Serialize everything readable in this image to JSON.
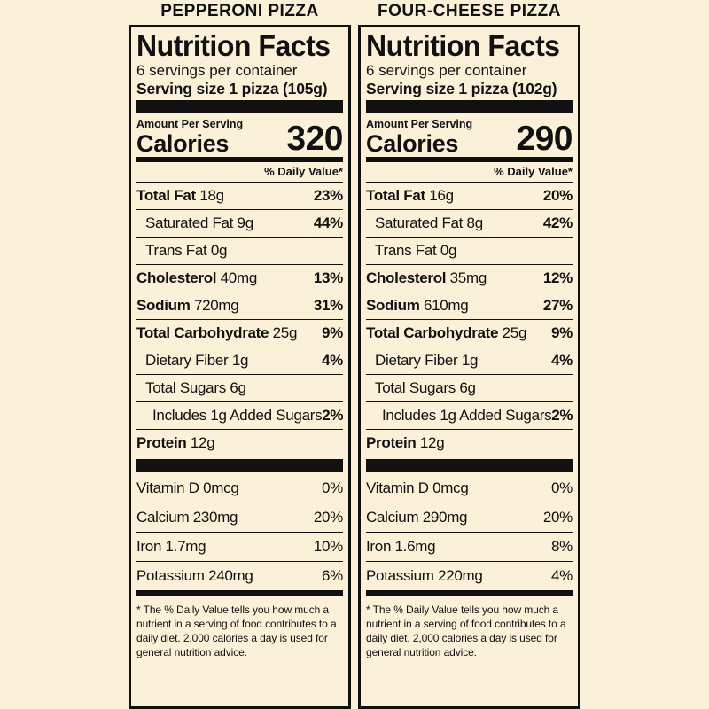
{
  "panels": [
    {
      "product": "PEPPERONI PIZZA",
      "title": "Nutrition Facts",
      "servings_per_container": "6 servings per container",
      "serving_size": "Serving size 1 pizza (105g)",
      "amount_per_serving": "Amount Per Serving",
      "calories_label": "Calories",
      "calories": "320",
      "dv_header": "% Daily Value*",
      "nutrients": [
        {
          "name": "Total Fat",
          "amount": "18g",
          "dv": "23%",
          "bold": true,
          "indent": 0
        },
        {
          "name": "Saturated Fat",
          "amount": "9g",
          "dv": "44%",
          "bold": false,
          "indent": 1
        },
        {
          "name": "Trans Fat",
          "amount": "0g",
          "dv": "",
          "bold": false,
          "indent": 1
        },
        {
          "name": "Cholesterol",
          "amount": "40mg",
          "dv": "13%",
          "bold": true,
          "indent": 0
        },
        {
          "name": "Sodium",
          "amount": "720mg",
          "dv": "31%",
          "bold": true,
          "indent": 0
        },
        {
          "name": "Total Carbohydrate",
          "amount": "25g",
          "dv": "9%",
          "bold": true,
          "indent": 0
        },
        {
          "name": "Dietary Fiber",
          "amount": "1g",
          "dv": "4%",
          "bold": false,
          "indent": 1
        },
        {
          "name": "Total Sugars",
          "amount": "6g",
          "dv": "",
          "bold": false,
          "indent": 1
        },
        {
          "name": "Includes 1g Added Sugars",
          "amount": "",
          "dv": "2%",
          "bold": false,
          "indent": 2
        },
        {
          "name": "Protein",
          "amount": "12g",
          "dv": "",
          "bold": true,
          "indent": 0
        }
      ],
      "vitamins": [
        {
          "name": "Vitamin D 0mcg",
          "dv": "0%"
        },
        {
          "name": "Calcium 230mg",
          "dv": "20%"
        },
        {
          "name": "Iron 1.7mg",
          "dv": "10%"
        },
        {
          "name": "Potassium 240mg",
          "dv": "6%"
        }
      ],
      "footnote": "* The % Daily Value tells you how much a nutrient in a serving of food contributes to a daily diet. 2,000 calories a day is used for general nutrition advice."
    },
    {
      "product": "FOUR-CHEESE PIZZA",
      "title": "Nutrition Facts",
      "servings_per_container": "6 servings per container",
      "serving_size": "Serving size 1 pizza (102g)",
      "amount_per_serving": "Amount Per Serving",
      "calories_label": "Calories",
      "calories": "290",
      "dv_header": "% Daily Value*",
      "nutrients": [
        {
          "name": "Total Fat",
          "amount": "16g",
          "dv": "20%",
          "bold": true,
          "indent": 0
        },
        {
          "name": "Saturated Fat",
          "amount": "8g",
          "dv": "42%",
          "bold": false,
          "indent": 1
        },
        {
          "name": "Trans Fat",
          "amount": "0g",
          "dv": "",
          "bold": false,
          "indent": 1
        },
        {
          "name": "Cholesterol",
          "amount": "35mg",
          "dv": "12%",
          "bold": true,
          "indent": 0
        },
        {
          "name": "Sodium",
          "amount": "610mg",
          "dv": "27%",
          "bold": true,
          "indent": 0
        },
        {
          "name": "Total Carbohydrate",
          "amount": "25g",
          "dv": "9%",
          "bold": true,
          "indent": 0
        },
        {
          "name": "Dietary Fiber",
          "amount": "1g",
          "dv": "4%",
          "bold": false,
          "indent": 1
        },
        {
          "name": "Total Sugars",
          "amount": "6g",
          "dv": "",
          "bold": false,
          "indent": 1
        },
        {
          "name": "Includes 1g Added Sugars",
          "amount": "",
          "dv": "2%",
          "bold": false,
          "indent": 2
        },
        {
          "name": "Protein",
          "amount": "12g",
          "dv": "",
          "bold": true,
          "indent": 0
        }
      ],
      "vitamins": [
        {
          "name": "Vitamin D 0mcg",
          "dv": "0%"
        },
        {
          "name": "Calcium 290mg",
          "dv": "20%"
        },
        {
          "name": "Iron 1.6mg",
          "dv": "8%"
        },
        {
          "name": "Potassium 220mg",
          "dv": "4%"
        }
      ],
      "footnote": "* The % Daily Value tells you how much a nutrient in a serving of food contributes to a daily diet. 2,000 calories a day is used for general nutrition advice."
    }
  ]
}
